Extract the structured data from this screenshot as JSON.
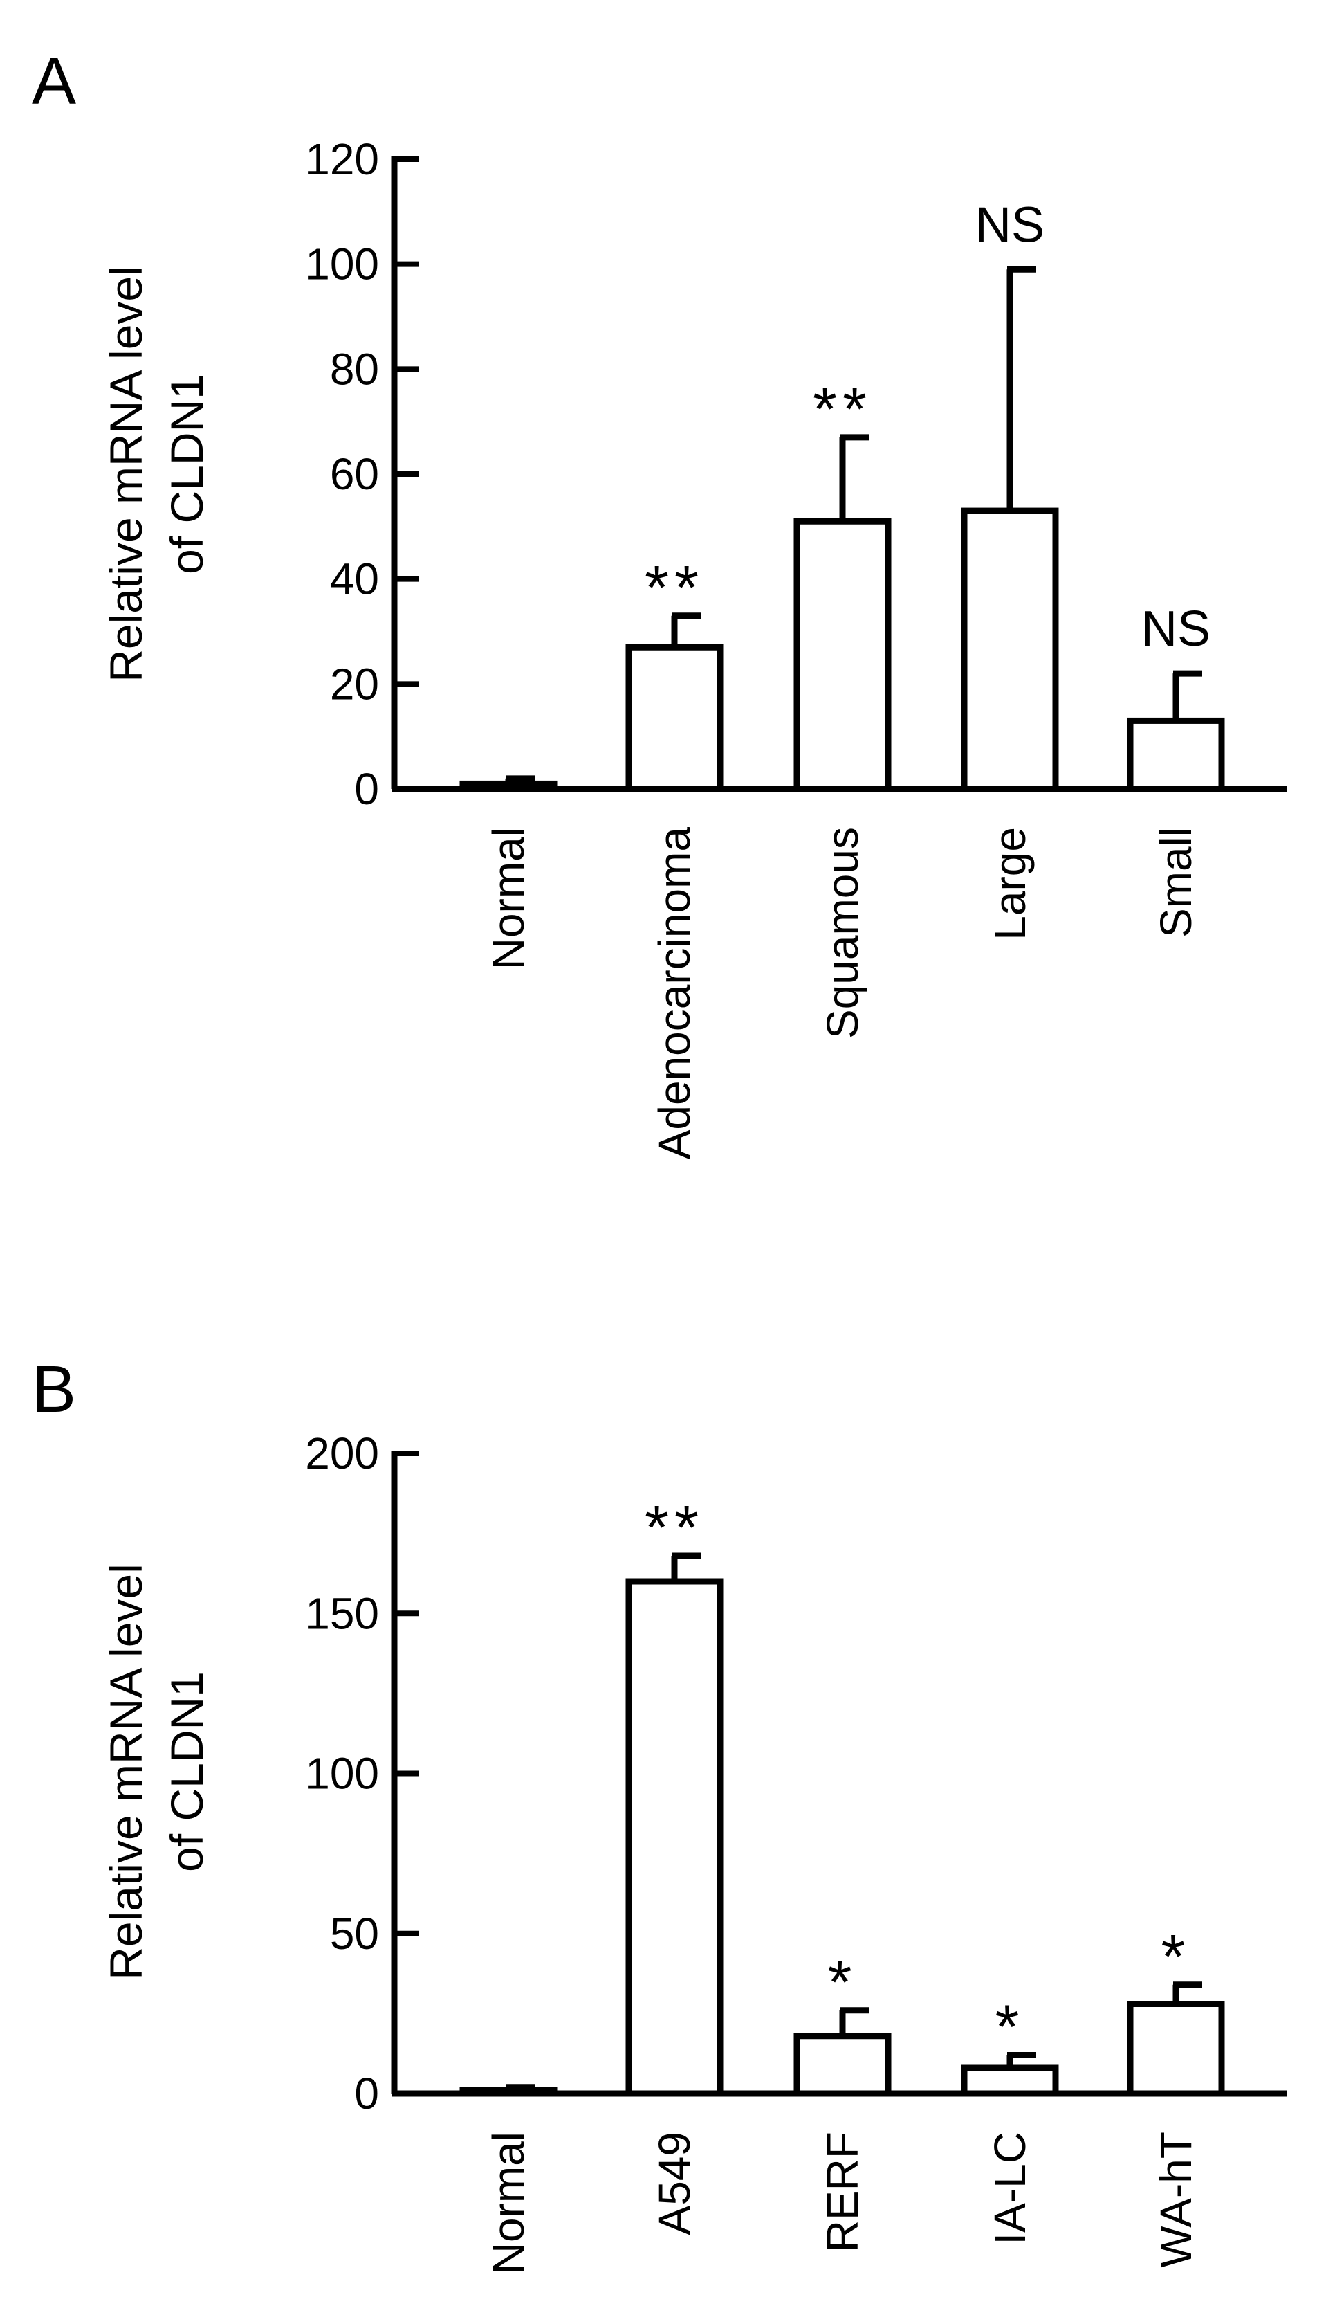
{
  "chart_data": [
    {
      "type": "bar",
      "panel": "A",
      "title": "",
      "xlabel": "",
      "ylabel_lines": [
        "Relative mRNA level",
        "of CLDN1"
      ],
      "ylim": [
        0,
        120
      ],
      "yticks": [
        0,
        20,
        40,
        60,
        80,
        100,
        120
      ],
      "categories": [
        "Normal",
        "Adenocarcinoma",
        "Squamous",
        "Large",
        "Small"
      ],
      "values": [
        1,
        27,
        51,
        53,
        13
      ],
      "error_upper": [
        1,
        6,
        16,
        46,
        9
      ],
      "annotations": [
        "",
        "**",
        "**",
        "NS",
        "NS"
      ],
      "grid": false,
      "legend": "none",
      "bar_fill": "#ffffff",
      "bar_stroke": "#000000"
    },
    {
      "type": "bar",
      "panel": "B",
      "title": "",
      "xlabel": "",
      "ylabel_lines": [
        "Relative mRNA level",
        "of CLDN1"
      ],
      "ylim": [
        0,
        200
      ],
      "yticks": [
        0,
        50,
        100,
        150,
        200
      ],
      "categories": [
        "Normal",
        "A549",
        "RERF",
        "IA-LC",
        "WA-hT"
      ],
      "values": [
        1,
        160,
        18,
        8,
        28
      ],
      "error_upper": [
        1,
        8,
        8,
        4,
        6
      ],
      "annotations": [
        "",
        "**",
        "*",
        "*",
        "*"
      ],
      "grid": false,
      "legend": "none",
      "bar_fill": "#ffffff",
      "bar_stroke": "#000000"
    }
  ]
}
